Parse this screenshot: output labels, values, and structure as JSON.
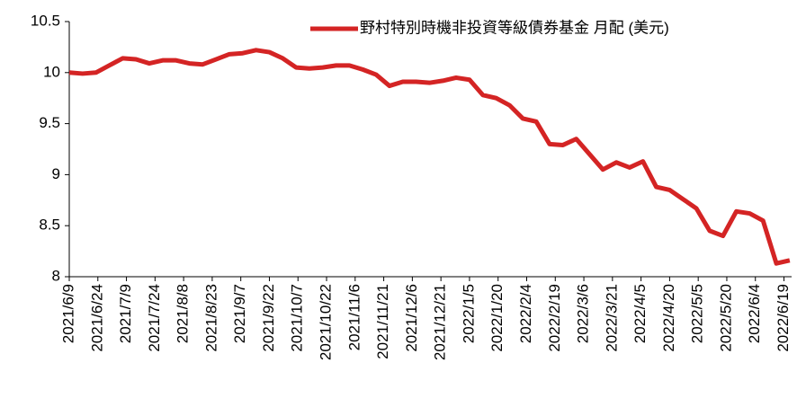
{
  "chart_data": {
    "type": "line",
    "series": [
      {
        "name": "野村特別時機非投資等級債券基金 月配 (美元)",
        "color": "#d42424",
        "x": [
          "2021/6/9",
          "2021/6/16",
          "2021/6/23",
          "2021/6/30",
          "2021/7/7",
          "2021/7/14",
          "2021/7/21",
          "2021/7/28",
          "2021/8/4",
          "2021/8/11",
          "2021/8/18",
          "2021/8/25",
          "2021/9/1",
          "2021/9/8",
          "2021/9/15",
          "2021/9/22",
          "2021/9/29",
          "2021/10/6",
          "2021/10/13",
          "2021/10/20",
          "2021/10/27",
          "2021/11/3",
          "2021/11/10",
          "2021/11/17",
          "2021/11/24",
          "2021/12/1",
          "2021/12/8",
          "2021/12/15",
          "2021/12/22",
          "2021/12/29",
          "2022/1/5",
          "2022/1/12",
          "2022/1/19",
          "2022/1/26",
          "2022/2/2",
          "2022/2/9",
          "2022/2/16",
          "2022/2/23",
          "2022/3/2",
          "2022/3/9",
          "2022/3/16",
          "2022/3/23",
          "2022/3/30",
          "2022/4/6",
          "2022/4/13",
          "2022/4/20",
          "2022/4/27",
          "2022/5/4",
          "2022/5/11",
          "2022/5/18",
          "2022/5/25",
          "2022/6/1",
          "2022/6/8",
          "2022/6/15",
          "2022/6/22"
        ],
        "values": [
          10.0,
          9.99,
          10.0,
          10.07,
          10.14,
          10.13,
          10.09,
          10.12,
          10.12,
          10.09,
          10.08,
          10.13,
          10.18,
          10.19,
          10.22,
          10.2,
          10.14,
          10.05,
          10.04,
          10.05,
          10.07,
          10.07,
          10.03,
          9.98,
          9.87,
          9.91,
          9.91,
          9.9,
          9.92,
          9.95,
          9.93,
          9.78,
          9.75,
          9.68,
          9.55,
          9.52,
          9.3,
          9.29,
          9.35,
          9.2,
          9.05,
          9.12,
          9.07,
          9.13,
          8.88,
          8.85,
          8.76,
          8.67,
          8.45,
          8.4,
          8.64,
          8.62,
          8.55,
          8.13,
          8.16
        ]
      }
    ],
    "xlim": [
      "2021/6/9",
      "2022/6/23"
    ],
    "xticks": [
      "2021/6/9",
      "2021/6/24",
      "2021/7/9",
      "2021/7/24",
      "2021/8/8",
      "2021/8/23",
      "2021/9/7",
      "2021/9/22",
      "2021/10/7",
      "2021/10/22",
      "2021/11/6",
      "2021/11/21",
      "2021/12/6",
      "2021/12/21",
      "2022/1/5",
      "2022/1/20",
      "2022/2/4",
      "2022/2/19",
      "2022/3/6",
      "2022/3/21",
      "2022/4/5",
      "2022/4/20",
      "2022/5/5",
      "2022/5/20",
      "2022/6/4",
      "2022/6/19"
    ],
    "ylim": [
      8,
      10.5
    ],
    "yticks": [
      8,
      8.5,
      9,
      9.5,
      10,
      10.5
    ],
    "grid": false,
    "legend": "top-right"
  }
}
